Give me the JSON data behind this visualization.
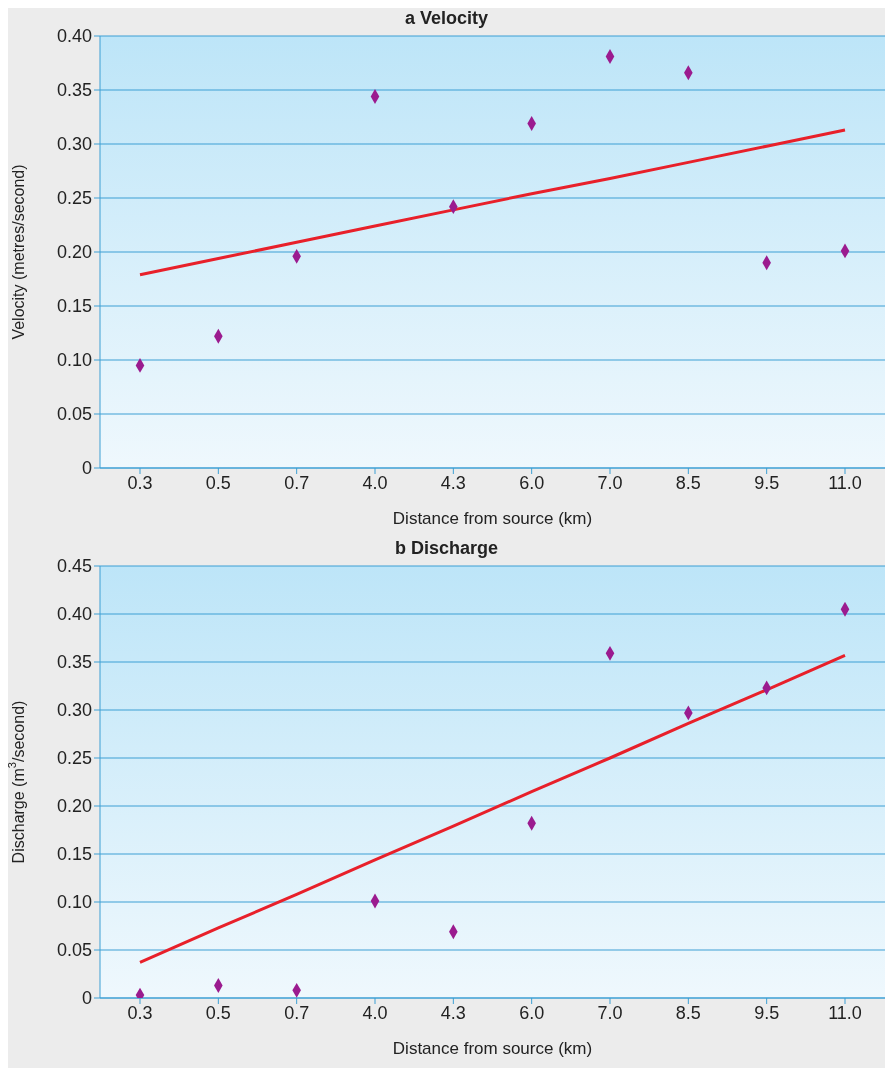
{
  "chart_data": [
    {
      "type": "scatter",
      "title": "a Velocity",
      "xlabel": "Distance from source (km)",
      "ylabel": "Velocity (metres/second)",
      "categories": [
        "0.3",
        "0.5",
        "0.7",
        "4.0",
        "4.3",
        "6.0",
        "7.0",
        "8.5",
        "9.5",
        "11.0"
      ],
      "ylim": [
        0,
        0.4
      ],
      "yticks": [
        {
          "value": 0,
          "label": "0"
        },
        {
          "value": 0.05,
          "label": "0.05"
        },
        {
          "value": 0.1,
          "label": "0.10"
        },
        {
          "value": 0.15,
          "label": "0.15"
        },
        {
          "value": 0.2,
          "label": "0.20"
        },
        {
          "value": 0.25,
          "label": "0.25"
        },
        {
          "value": 0.3,
          "label": "0.30"
        },
        {
          "value": 0.35,
          "label": "0.35"
        },
        {
          "value": 0.4,
          "label": "0.40"
        }
      ],
      "grid": "y",
      "marker": "diamond",
      "series": [
        {
          "color": "#9b1b8f",
          "values": [
            0.095,
            0.122,
            0.196,
            0.344,
            0.242,
            0.319,
            0.381,
            0.366,
            0.19,
            0.201
          ]
        },
        {
          "type": "line",
          "color": "#e8202a",
          "marker": "none",
          "line_style": "solid",
          "values": [
            0.179,
            0.194,
            0.209,
            0.224,
            0.239,
            0.254,
            0.268,
            0.283,
            0.298,
            0.313
          ]
        }
      ]
    },
    {
      "type": "scatter",
      "title": "b Discharge",
      "xlabel": "Distance from source (km)",
      "ylabel": "Discharge (m$^{3}$/second)",
      "categories": [
        "0.3",
        "0.5",
        "0.7",
        "4.0",
        "4.3",
        "6.0",
        "7.0",
        "8.5",
        "9.5",
        "11.0"
      ],
      "ylim": [
        0,
        0.45
      ],
      "yticks": [
        {
          "value": 0,
          "label": "0"
        },
        {
          "value": 0.05,
          "label": "0.05"
        },
        {
          "value": 0.1,
          "label": "0.10"
        },
        {
          "value": 0.15,
          "label": "0.15"
        },
        {
          "value": 0.2,
          "label": "0.20"
        },
        {
          "value": 0.25,
          "label": "0.25"
        },
        {
          "value": 0.3,
          "label": "0.30"
        },
        {
          "value": 0.35,
          "label": "0.35"
        },
        {
          "value": 0.4,
          "label": "0.40"
        },
        {
          "value": 0.45,
          "label": "0.45"
        }
      ],
      "grid": "y",
      "marker": "diamond",
      "series": [
        {
          "color": "#9b1b8f",
          "values": [
            0.003,
            0.013,
            0.008,
            0.101,
            0.069,
            0.182,
            0.359,
            0.297,
            0.323,
            0.405
          ]
        },
        {
          "type": "line",
          "color": "#e8202a",
          "marker": "none",
          "line_style": "solid",
          "values": [
            0.037,
            0.073,
            0.108,
            0.144,
            0.179,
            0.215,
            0.25,
            0.286,
            0.321,
            0.357
          ]
        }
      ]
    }
  ]
}
